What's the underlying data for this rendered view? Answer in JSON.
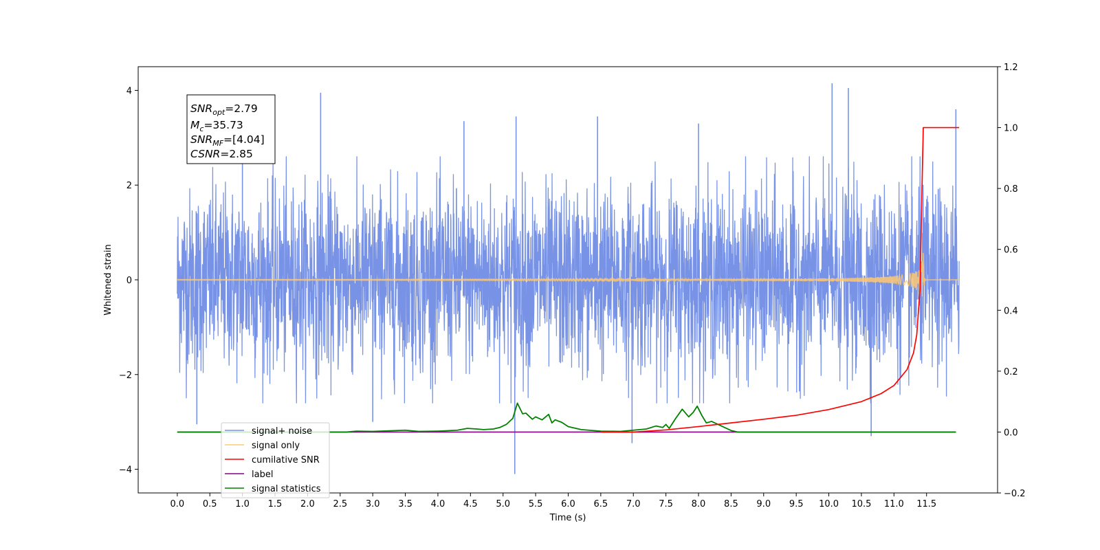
{
  "chart_data": {
    "type": "line",
    "xlabel": "Time (s)",
    "ylabel": "Whitened strain",
    "xlim": [
      -0.6,
      12.59
    ],
    "ylim": [
      -4.5,
      4.5
    ],
    "y2lim": [
      -0.2,
      1.2
    ],
    "x_ticks": [
      "0.0",
      "0.5",
      "1.0",
      "1.5",
      "2.0",
      "2.5",
      "3.0",
      "3.5",
      "4.0",
      "4.5",
      "5.0",
      "5.5",
      "6.0",
      "6.5",
      "7.0",
      "7.5",
      "8.0",
      "8.5",
      "9.0",
      "9.5",
      "10.0",
      "10.5",
      "11.0",
      "11.5"
    ],
    "y_ticks": [
      "4",
      "2",
      "0",
      "−2",
      "−4"
    ],
    "y2_ticks": [
      "1.2",
      "1.0",
      "0.8",
      "0.6",
      "0.4",
      "0.2",
      "0.0",
      "−0.2"
    ],
    "info_box": {
      "snr_opt": {
        "base": "SNR",
        "sub": "opt",
        "value": "=2.79"
      },
      "mc": {
        "base": "M",
        "sub": "c",
        "value": "=35.73"
      },
      "snr_mf": {
        "base": "SNR",
        "sub": "MF",
        "value": "=[4.04]"
      },
      "csnr": {
        "base": "CSNR",
        "sub": "",
        "value": "=2.85"
      }
    },
    "legend": {
      "placement": "lower-left",
      "entries": [
        {
          "label": "signal+ noise",
          "color": "#7893e6"
        },
        {
          "label": "signal only",
          "color": "#ffc870"
        },
        {
          "label": "cumilative SNR",
          "color": "#ff0000"
        },
        {
          "label": "label",
          "color": "#800080"
        },
        {
          "label": "signal statistics",
          "color": "#008000"
        }
      ]
    },
    "series": [
      {
        "name": "signal+ noise",
        "color": "#7893e6",
        "axis": "left",
        "x_range": [
          0.0,
          12.0
        ],
        "typical_range": [
          -2.2,
          2.2
        ],
        "spikes": [
          {
            "x": 2.2,
            "y": 3.95
          },
          {
            "x": 5.2,
            "y": 3.45
          },
          {
            "x": 6.45,
            "y": 3.45
          },
          {
            "x": 10.05,
            "y": 4.15
          },
          {
            "x": 10.3,
            "y": 4.05
          },
          {
            "x": 11.95,
            "y": 3.6
          },
          {
            "x": 5.18,
            "y": -4.1
          },
          {
            "x": 6.98,
            "y": -3.45
          },
          {
            "x": 0.3,
            "y": -3.05
          },
          {
            "x": 3.0,
            "y": -3.0
          },
          {
            "x": 10.65,
            "y": -3.3
          },
          {
            "x": 1.0,
            "y": 3.3
          },
          {
            "x": 8.0,
            "y": 3.3
          },
          {
            "x": 4.4,
            "y": 3.35
          }
        ]
      },
      {
        "name": "signal only",
        "color": "#ffc870",
        "axis": "left",
        "x_range": [
          0.0,
          12.0
        ],
        "merger_time": 11.45,
        "peak_amplitude": 0.65
      },
      {
        "name": "cumilative SNR",
        "color": "#ff0000",
        "axis": "right",
        "x": [
          6.5,
          7.0,
          7.5,
          8.0,
          8.5,
          9.0,
          9.5,
          10.0,
          10.5,
          10.8,
          11.0,
          11.2,
          11.3,
          11.35,
          11.4,
          11.43,
          11.45,
          12.0
        ],
        "values": [
          0.0,
          0.0,
          0.007,
          0.018,
          0.03,
          0.042,
          0.055,
          0.074,
          0.1,
          0.126,
          0.153,
          0.205,
          0.26,
          0.32,
          0.47,
          0.8,
          1.0,
          1.0
        ]
      },
      {
        "name": "label",
        "color": "#800080",
        "axis": "right",
        "x": [
          0.0,
          11.95
        ],
        "values": [
          0.0,
          0.0
        ]
      },
      {
        "name": "signal statistics",
        "color": "#008000",
        "axis": "right",
        "x": [
          0.0,
          2.6,
          2.75,
          3.0,
          3.5,
          3.7,
          4.0,
          4.3,
          4.45,
          4.6,
          4.7,
          4.85,
          4.95,
          5.05,
          5.15,
          5.22,
          5.3,
          5.35,
          5.45,
          5.5,
          5.6,
          5.7,
          5.75,
          5.8,
          5.9,
          6.0,
          6.2,
          6.5,
          6.8,
          7.0,
          7.2,
          7.35,
          7.45,
          7.5,
          7.55,
          7.65,
          7.75,
          7.85,
          7.92,
          7.98,
          8.05,
          8.12,
          8.2,
          8.35,
          8.5,
          8.6,
          11.95
        ],
        "values": [
          0.0,
          0.0,
          0.003,
          0.002,
          0.006,
          0.002,
          0.003,
          0.006,
          0.012,
          0.01,
          0.008,
          0.01,
          0.015,
          0.025,
          0.045,
          0.095,
          0.06,
          0.062,
          0.042,
          0.05,
          0.04,
          0.058,
          0.03,
          0.04,
          0.032,
          0.018,
          0.008,
          0.003,
          0.002,
          0.006,
          0.01,
          0.02,
          0.015,
          0.025,
          0.012,
          0.045,
          0.075,
          0.05,
          0.065,
          0.085,
          0.055,
          0.03,
          0.035,
          0.02,
          0.005,
          0.0,
          0.0
        ]
      }
    ]
  }
}
